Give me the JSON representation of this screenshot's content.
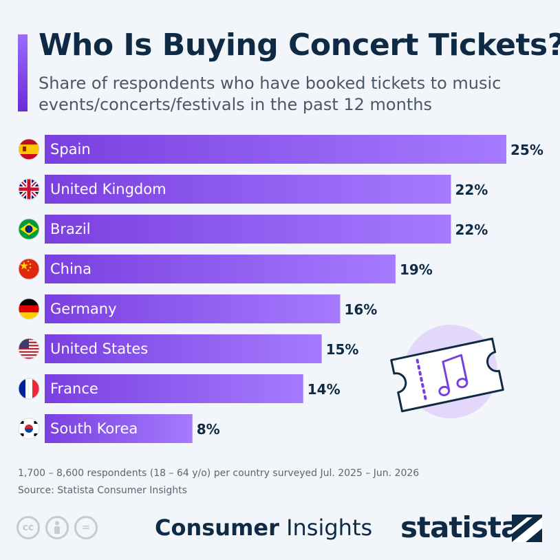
{
  "header": {
    "title": "Who Is Buying Concert Tickets?",
    "subtitle": "Share of respondents who have booked tickets to music events/concerts/festivals in the past 12 months"
  },
  "chart_data": {
    "type": "bar",
    "orientation": "horizontal",
    "categories": [
      "Spain",
      "United Kingdom",
      "Brazil",
      "China",
      "Germany",
      "United States",
      "France",
      "South Korea"
    ],
    "values": [
      25,
      22,
      22,
      19,
      16,
      15,
      14,
      8
    ],
    "value_labels": [
      "25%",
      "22%",
      "22%",
      "19%",
      "16%",
      "15%",
      "14%",
      "8%"
    ],
    "flag_icons": [
      "spain-flag-icon",
      "uk-flag-icon",
      "brazil-flag-icon",
      "china-flag-icon",
      "germany-flag-icon",
      "usa-flag-icon",
      "france-flag-icon",
      "south-korea-flag-icon"
    ],
    "xlim": [
      0,
      25
    ],
    "bar_color_start": "#7a3fe0",
    "bar_color_end": "#a57bff",
    "grid": false
  },
  "illustration": {
    "icon": "concert-ticket-music-note-icon",
    "circle_color": "#e3d6fb"
  },
  "footer": {
    "note": "1,700 – 8,600 respondents (18 – 64 y/o) per country surveyed Jul. 2025 – Jun. 2026",
    "source": "Source: Statista Consumer Insights",
    "license_icons": [
      "creative-commons-icon",
      "attribution-icon",
      "no-derivatives-icon"
    ],
    "cc_text": "cc",
    "nd_text": "=",
    "brand_bold": "Consumer",
    "brand_light": " Insights",
    "logo": "statista"
  }
}
